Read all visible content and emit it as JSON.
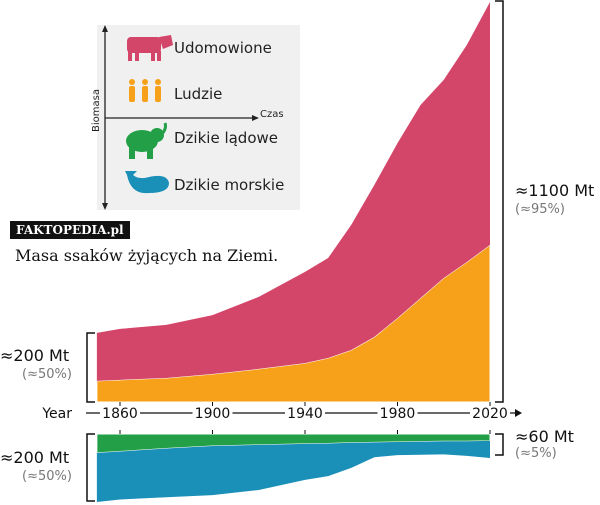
{
  "legend": {
    "y_axis_label": "Biomasa",
    "x_axis_label": "Czas",
    "items": [
      {
        "label": "Udomowione",
        "icon": "cow-icon",
        "color": "#d4456a"
      },
      {
        "label": "Ludzie",
        "icon": "people-icon",
        "color": "#f7a01a"
      },
      {
        "label": "Dzikie lądowe",
        "icon": "elephant-icon",
        "color": "#23a047"
      },
      {
        "label": "Dzikie morskie",
        "icon": "whale-icon",
        "color": "#1a8fb8"
      }
    ]
  },
  "watermark": "FAKTOPEDIA.pl",
  "caption": "Masa ssaków żyjących na Ziemi.",
  "annotations": {
    "top_left_value": "≈200 Mt",
    "top_left_pct": "(≈50%)",
    "top_right_value": "≈1100 Mt",
    "top_right_pct": "(≈95%)",
    "bottom_left_value": "≈200 Mt",
    "bottom_left_pct": "(≈50%)",
    "bottom_right_value": "≈60 Mt",
    "bottom_right_pct": "(≈5%)"
  },
  "chart_data": {
    "type": "area",
    "xlabel": "Year",
    "x_ticks": [
      "1860",
      "1900",
      "1940",
      "1980",
      "2020"
    ],
    "xlim": [
      1850,
      2020
    ],
    "units": "Mt",
    "x": [
      1850,
      1860,
      1880,
      1900,
      1920,
      1940,
      1950,
      1960,
      1970,
      1980,
      1990,
      2000,
      2010,
      2020
    ],
    "panels": [
      {
        "direction": "up",
        "series": [
          {
            "name": "Ludzie",
            "color": "#f7a01a",
            "values": [
              58,
              61,
              66,
              77,
              91,
              107,
              121,
              143,
              179,
              231,
              286,
              341,
              385,
              432
            ]
          },
          {
            "name": "Udomowione",
            "color": "#d4456a",
            "values": [
              132,
              140,
              146,
              162,
              198,
              251,
              275,
              344,
              418,
              481,
              531,
              545,
              597,
              668
            ]
          }
        ]
      },
      {
        "direction": "down",
        "series": [
          {
            "name": "Dzikie lądowe",
            "color": "#23a047",
            "values": [
              52,
              48,
              40,
              33,
              30,
              27,
              26,
              24,
              23,
              22,
              21,
              20,
              20,
              19
            ]
          },
          {
            "name": "Dzikie morskie",
            "color": "#1a8fb8",
            "values": [
              135,
              132,
              134,
              135,
              124,
              99,
              90,
              69,
              41,
              36,
              36,
              36,
              40,
              47
            ]
          }
        ]
      }
    ]
  }
}
